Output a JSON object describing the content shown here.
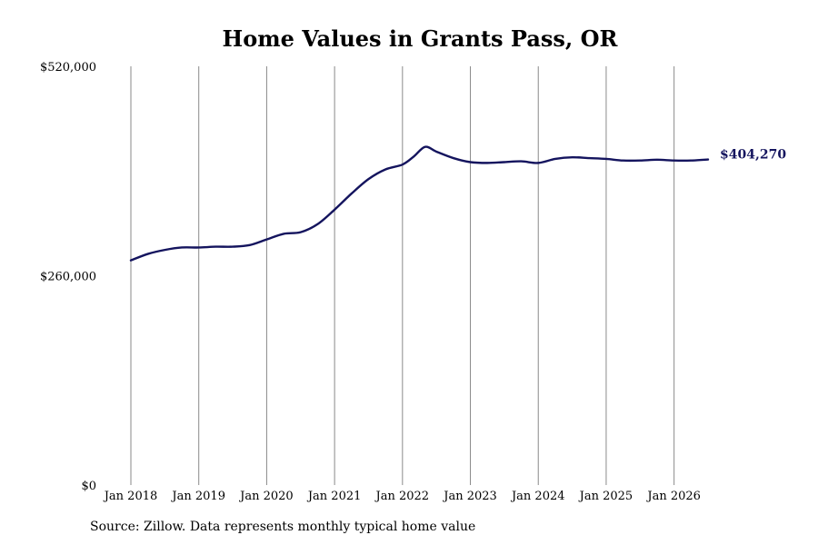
{
  "colors": {
    "line": "#14145e",
    "grid": "#8a8a8a",
    "text": "#000000",
    "background": "#ffffff"
  },
  "source_note": "Source: Zillow. Data represents monthly typical home value",
  "chart_data": {
    "type": "line",
    "title": "Home Values in Grants Pass, OR",
    "xlabel": "",
    "ylabel": "",
    "ylim": [
      0,
      520000
    ],
    "yticks": [
      0,
      260000,
      520000
    ],
    "ytick_labels": [
      "$0",
      "$260,000",
      "$520,000"
    ],
    "xlim": [
      "2018-01",
      "2026-07"
    ],
    "xticks": [
      "2018-01",
      "2019-01",
      "2020-01",
      "2021-01",
      "2022-01",
      "2023-01",
      "2024-01",
      "2025-01",
      "2026-01"
    ],
    "xtick_labels": [
      "Jan 2018",
      "Jan 2019",
      "Jan 2020",
      "Jan 2021",
      "Jan 2022",
      "Jan 2023",
      "Jan 2024",
      "Jan 2025",
      "Jan 2026"
    ],
    "grid": "vertical",
    "end_label": "$404,270",
    "series": [
      {
        "x": [
          "2018-01",
          "2018-04",
          "2018-07",
          "2018-10",
          "2019-01",
          "2019-04",
          "2019-07",
          "2019-10",
          "2020-01",
          "2020-04",
          "2020-07",
          "2020-10",
          "2021-01",
          "2021-04",
          "2021-07",
          "2021-10",
          "2022-01",
          "2022-03",
          "2022-05",
          "2022-07",
          "2022-10",
          "2023-01",
          "2023-04",
          "2023-07",
          "2023-10",
          "2024-01",
          "2024-04",
          "2024-07",
          "2024-10",
          "2025-01",
          "2025-04",
          "2025-07",
          "2025-10",
          "2026-01",
          "2026-04",
          "2026-07"
        ],
        "y": [
          279000,
          287000,
          292000,
          295000,
          295000,
          296000,
          296000,
          298000,
          305000,
          312000,
          314000,
          324000,
          342000,
          362000,
          380000,
          392000,
          398000,
          408000,
          420000,
          414000,
          406000,
          401000,
          400000,
          401000,
          402000,
          400000,
          405000,
          407000,
          406000,
          405000,
          403000,
          403000,
          404000,
          403000,
          403000,
          404270
        ]
      }
    ]
  }
}
